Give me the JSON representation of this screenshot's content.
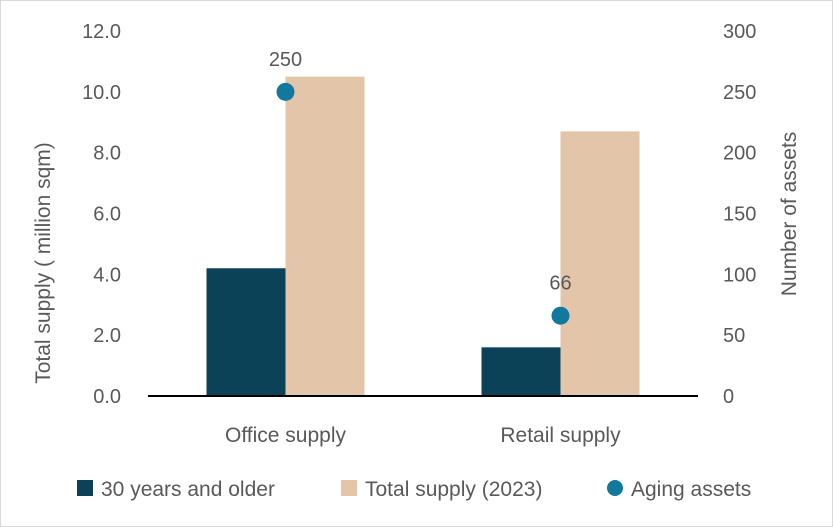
{
  "chart_data": {
    "type": "bar",
    "categories": [
      "Office supply",
      "Retail supply"
    ],
    "series": [
      {
        "name": "30 years and older",
        "type": "bar",
        "axis": "left",
        "values": [
          4.2,
          1.6
        ],
        "color": "#0b4257"
      },
      {
        "name": "Total supply (2023)",
        "type": "bar",
        "axis": "left",
        "values": [
          10.5,
          8.7
        ],
        "color": "#e3c6a9"
      },
      {
        "name": "Aging assets",
        "type": "scatter",
        "axis": "right",
        "values": [
          250,
          66
        ],
        "color": "#12789e",
        "data_labels": [
          "250",
          "66"
        ]
      }
    ],
    "ylabel": "Total supply ( million sqm)",
    "y2label": "Number of assets",
    "ylim": [
      0,
      12
    ],
    "y2lim": [
      0,
      300
    ],
    "yticks": [
      "0.0",
      "2.0",
      "4.0",
      "6.0",
      "8.0",
      "10.0",
      "12.0"
    ],
    "y2ticks": [
      "0",
      "50",
      "100",
      "150",
      "200",
      "250",
      "300"
    ],
    "legend_position": "bottom",
    "grid": false
  }
}
